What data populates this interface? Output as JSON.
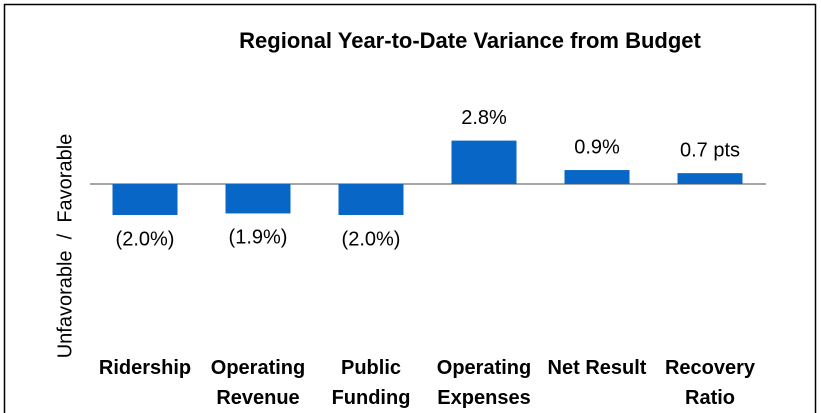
{
  "chart_data": {
    "type": "bar",
    "title": "Regional Year-to-Date Variance from Budget",
    "ylabel": "Unfavorable  /  Favorable",
    "categories": [
      "Ridership",
      "Operating Revenue",
      "Public Funding",
      "Operating Expenses",
      "Net Result",
      "Recovery Ratio"
    ],
    "values": [
      -2.0,
      -1.9,
      -2.0,
      2.8,
      0.9,
      0.7
    ],
    "value_labels": [
      "(2.0%)",
      "(1.9%)",
      "(2.0%)",
      "2.8%",
      "0.9%",
      "0.7 pts"
    ],
    "color": "#0866c6"
  }
}
